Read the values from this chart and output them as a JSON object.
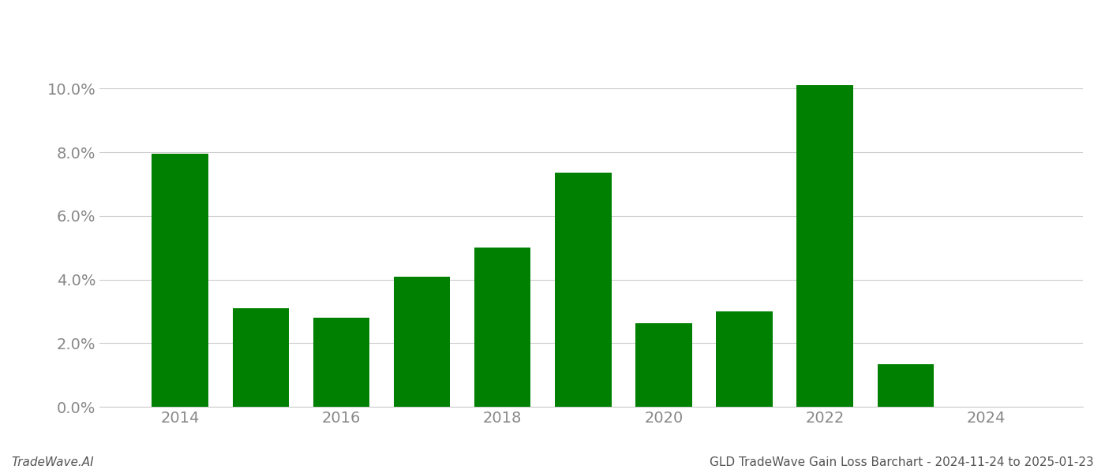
{
  "years": [
    2014,
    2015,
    2016,
    2017,
    2018,
    2019,
    2020,
    2021,
    2022,
    2023,
    2024
  ],
  "values": [
    0.0795,
    0.031,
    0.028,
    0.041,
    0.05,
    0.0735,
    0.0262,
    0.03,
    0.101,
    0.0135,
    0.0
  ],
  "bar_color": "#008000",
  "background_color": "#ffffff",
  "title": "GLD TradeWave Gain Loss Barchart - 2024-11-24 to 2025-01-23",
  "footer_left": "TradeWave.AI",
  "ylim": [
    0,
    0.11
  ],
  "yticks": [
    0.0,
    0.02,
    0.04,
    0.06,
    0.08,
    0.1
  ],
  "ytick_labels": [
    "0.0%",
    "2.0%",
    "4.0%",
    "6.0%",
    "8.0%",
    "10.0%"
  ],
  "xtick_positions": [
    2014,
    2016,
    2018,
    2020,
    2022,
    2024
  ],
  "xtick_labels": [
    "2014",
    "2016",
    "2018",
    "2020",
    "2022",
    "2024"
  ],
  "grid_color": "#cccccc",
  "axis_label_color": "#888888",
  "bar_width": 0.7,
  "xlim": [
    2013.0,
    2025.2
  ]
}
